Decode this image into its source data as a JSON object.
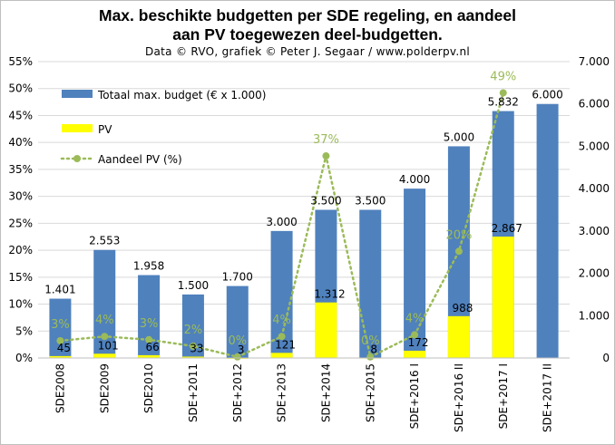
{
  "title_line1": "Max. beschikte  budgetten per SDE regeling,  en aandeel",
  "title_line2": "aan PV toegewezen deel-budgetten.",
  "subtitle": "Data © RVO, grafiek © Peter J. Segaar / www.polderpv.nl",
  "colors": {
    "total": "#4F81BD",
    "pv": "#FFFF00",
    "share": "#9BBB59",
    "grid": "#d9d9d9"
  },
  "chart_data": {
    "type": "bar",
    "categories": [
      "SDE2008",
      "SDE2009",
      "SDE2010",
      "SDE+2011",
      "SDE+2012",
      "SDE+2013",
      "SDE+2014",
      "SDE+2015",
      "SDE+2016 I",
      "SDE+2016 II",
      "SDE+2017 I",
      "SDE+2017 II"
    ],
    "series": [
      {
        "name": "Totaal max. budget (€ x 1.000)",
        "kind": "bar",
        "axis": "right",
        "values": [
          1401,
          2553,
          1958,
          1500,
          1700,
          3000,
          3500,
          3500,
          4000,
          5000,
          5832,
          6000
        ],
        "labels": [
          "1.401",
          "2.553",
          "1.958",
          "1.500",
          "1.700",
          "3.000",
          "3.500",
          "3.500",
          "4.000",
          "5.000",
          "5.832",
          "6.000"
        ]
      },
      {
        "name": "PV",
        "kind": "bar",
        "axis": "right",
        "values": [
          45,
          101,
          66,
          33,
          3,
          121,
          1312,
          8,
          172,
          988,
          2867,
          null
        ],
        "labels": [
          "45",
          "101",
          "66",
          "33",
          "3",
          "121",
          "1.312",
          "8",
          "172",
          "988",
          "2.867",
          ""
        ]
      },
      {
        "name": "Aandeel PV (%)",
        "kind": "line",
        "axis": "left",
        "values": [
          3.2,
          4.0,
          3.4,
          2.2,
          0.2,
          4.0,
          37.5,
          0.2,
          4.3,
          19.8,
          49.2,
          null
        ],
        "labels": [
          "3%",
          "4%",
          "3%",
          "2%",
          "0%",
          "4%",
          "37%",
          "0%",
          "4%",
          "20%",
          "49%",
          ""
        ]
      }
    ],
    "left_axis": {
      "min": 0,
      "max": 55,
      "step": 5,
      "tick_labels": [
        "0%",
        "5%",
        "10%",
        "15%",
        "20%",
        "25%",
        "30%",
        "35%",
        "40%",
        "45%",
        "50%",
        "55%"
      ]
    },
    "right_axis": {
      "min": 0,
      "max": 7000,
      "step": 1000,
      "tick_labels": [
        "0",
        "1.000",
        "2.000",
        "3.000",
        "4.000",
        "5.000",
        "6.000",
        "7.000"
      ]
    },
    "grid": true,
    "legend_position": "top-left inside plot"
  }
}
